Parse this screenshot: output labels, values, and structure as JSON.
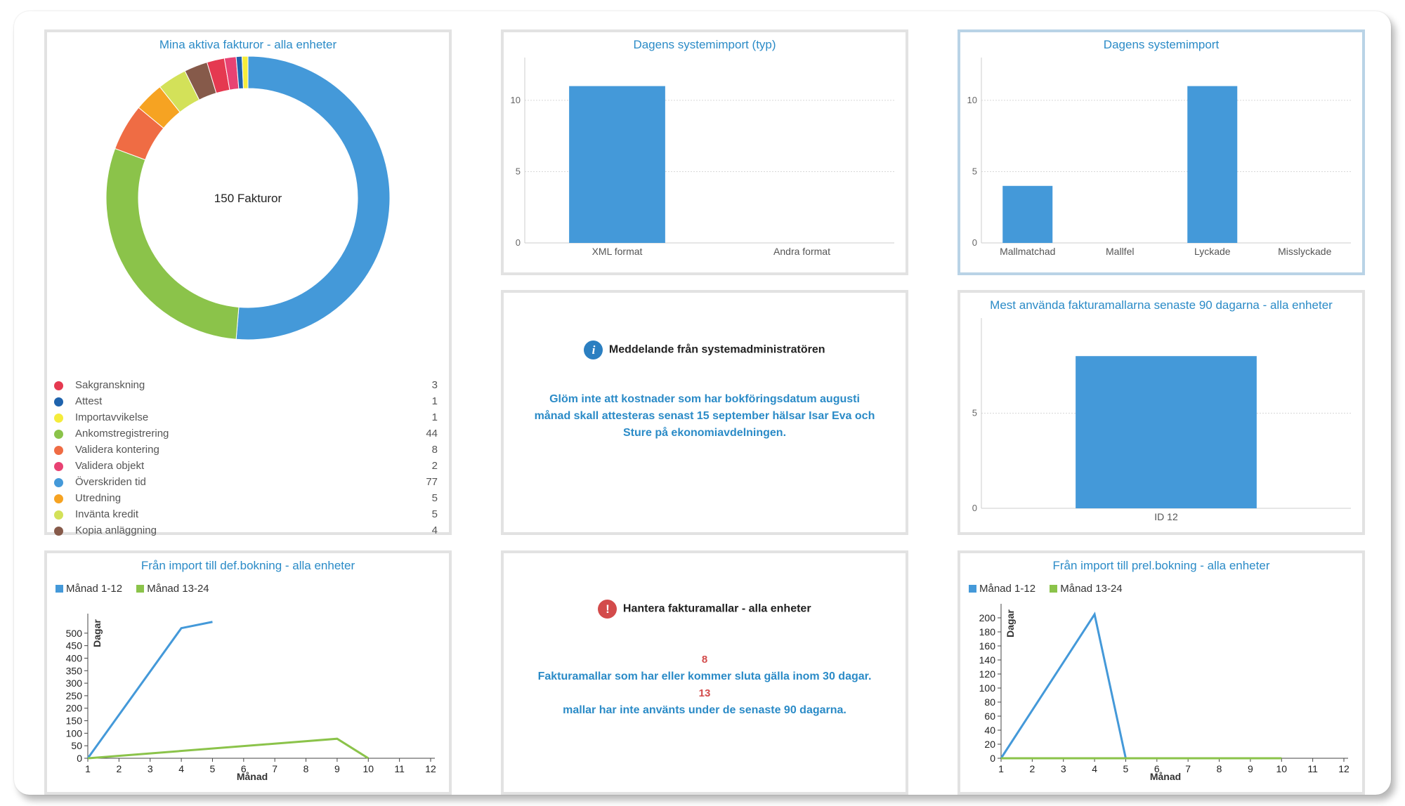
{
  "colors": {
    "title": "#2b8bc7",
    "bar": "#4499d9",
    "line_blue": "#4499d9",
    "line_green": "#8bc34a",
    "info_icon": "#2b7fc1",
    "warn_icon": "#d34b4b"
  },
  "donut": {
    "title": "Mina aktiva fakturor - alla enheter",
    "center_label": "150 Fakturor",
    "legend": [
      {
        "label": "Sakgranskning",
        "count": "3",
        "color": "#e53950"
      },
      {
        "label": "Attest",
        "count": "1",
        "color": "#1f63ad"
      },
      {
        "label": "Importavvikelse",
        "count": "1",
        "color": "#f5ec3b"
      },
      {
        "label": "Ankomstregistrering",
        "count": "44",
        "color": "#8bc34a"
      },
      {
        "label": "Validera kontering",
        "count": "8",
        "color": "#ef6c44"
      },
      {
        "label": "Validera objekt",
        "count": "2",
        "color": "#e84273"
      },
      {
        "label": "Överskriden tid",
        "count": "77",
        "color": "#4499d9"
      },
      {
        "label": "Utredning",
        "count": "5",
        "color": "#f6a322"
      },
      {
        "label": "Invänta kredit",
        "count": "5",
        "color": "#d3e159"
      },
      {
        "label": "Kopia anläggning",
        "count": "4",
        "color": "#865a4a"
      }
    ]
  },
  "bar_type": {
    "title": "Dagens systemimport (typ)"
  },
  "bar_import": {
    "title": "Dagens systemimport"
  },
  "bar_templates": {
    "title": "Mest använda fakturamallarna senaste 90 dagarna - alla enheter"
  },
  "admin_message": {
    "icon": "info-icon",
    "icon_glyph": "i",
    "heading": "Meddelande från systemadministratören",
    "body": "Glöm inte att kostnader som har bokföringsdatum augusti månad skall attesteras senast 15 september hälsar Isar Eva och Sture på ekonomiavdelningen."
  },
  "templates_message": {
    "icon": "warning-icon",
    "icon_glyph": "!",
    "heading": "Hantera fakturamallar - alla enheter",
    "count_1": "8",
    "text_1": "Fakturamallar som har eller kommer sluta gälla inom 30 dagar.",
    "count_2": "13",
    "text_2": "mallar har inte använts under de senaste 90 dagarna."
  },
  "chart_data": [
    {
      "type": "pie",
      "title": "Mina aktiva fakturor - alla enheter",
      "center_label": "150 Fakturor",
      "slices": [
        {
          "label": "Överskriden tid",
          "value": 77,
          "color": "#4499d9"
        },
        {
          "label": "Ankomstregistrering",
          "value": 44,
          "color": "#8bc34a"
        },
        {
          "label": "Validera kontering",
          "value": 8,
          "color": "#ef6c44"
        },
        {
          "label": "Utredning",
          "value": 5,
          "color": "#f6a322"
        },
        {
          "label": "Invänta kredit",
          "value": 5,
          "color": "#d3e159"
        },
        {
          "label": "Kopia anläggning",
          "value": 4,
          "color": "#865a4a"
        },
        {
          "label": "Sakgranskning",
          "value": 3,
          "color": "#e53950"
        },
        {
          "label": "Validera objekt",
          "value": 2,
          "color": "#e84273"
        },
        {
          "label": "Attest",
          "value": 1,
          "color": "#1f63ad"
        },
        {
          "label": "Importavvikelse",
          "value": 1,
          "color": "#f5ec3b"
        }
      ]
    },
    {
      "type": "bar",
      "title": "Dagens systemimport (typ)",
      "categories": [
        "XML format",
        "Andra format"
      ],
      "values": [
        11,
        0
      ],
      "ylim": [
        0,
        13
      ],
      "yticks": [
        0,
        5,
        10
      ],
      "grid": true
    },
    {
      "type": "bar",
      "title": "Dagens systemimport",
      "categories": [
        "Mallmatchad",
        "Mallfel",
        "Lyckade",
        "Misslyckade"
      ],
      "values": [
        4,
        0,
        11,
        0
      ],
      "ylim": [
        0,
        13
      ],
      "yticks": [
        0,
        5,
        10
      ],
      "grid": true
    },
    {
      "type": "bar",
      "title": "Mest använda fakturamallarna senaste 90 dagarna - alla enheter",
      "categories": [
        "ID 12"
      ],
      "values": [
        8
      ],
      "ylim": [
        0,
        10
      ],
      "yticks": [
        0,
        5
      ],
      "grid": true
    },
    {
      "type": "line",
      "title": "Från import till def.bokning - alla enheter",
      "xlabel": "Månad",
      "ylabel": "Dagar",
      "x": [
        1,
        2,
        3,
        4,
        5,
        6,
        7,
        8,
        9,
        10,
        11,
        12
      ],
      "ylim": [
        0,
        550
      ],
      "yticks": [
        0,
        50,
        100,
        150,
        200,
        250,
        300,
        350,
        400,
        450,
        500
      ],
      "legend_position": "top-left",
      "series": [
        {
          "name": "Månad 1-12",
          "color": "#4499d9",
          "points": [
            [
              1,
              0
            ],
            [
              4,
              520
            ],
            [
              5,
              545
            ]
          ]
        },
        {
          "name": "Månad 13-24",
          "color": "#8bc34a",
          "points": [
            [
              1,
              0
            ],
            [
              9,
              78
            ],
            [
              10,
              0
            ]
          ]
        }
      ]
    },
    {
      "type": "line",
      "title": "Från import till prel.bokning - alla enheter",
      "xlabel": "Månad",
      "ylabel": "Dagar",
      "x": [
        1,
        2,
        3,
        4,
        5,
        6,
        7,
        8,
        9,
        10,
        11,
        12
      ],
      "ylim": [
        0,
        210
      ],
      "yticks": [
        0,
        20,
        40,
        60,
        80,
        100,
        120,
        140,
        160,
        180,
        200
      ],
      "legend_position": "top-left",
      "series": [
        {
          "name": "Månad 1-12",
          "color": "#4499d9",
          "points": [
            [
              1,
              0
            ],
            [
              4,
              205
            ],
            [
              5,
              0
            ]
          ]
        },
        {
          "name": "Månad 13-24",
          "color": "#8bc34a",
          "points": [
            [
              1,
              0
            ],
            [
              10,
              0
            ]
          ]
        }
      ]
    }
  ]
}
